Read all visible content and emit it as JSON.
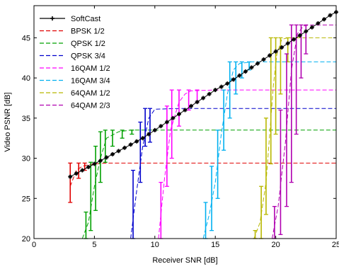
{
  "chart_data": {
    "type": "line",
    "xlabel": "Receiver SNR [dB]",
    "ylabel": "Video PSNR [dB]",
    "xlim": [
      0,
      25
    ],
    "ylim": [
      20,
      49
    ],
    "xticks": [
      0,
      5,
      10,
      15,
      20,
      25
    ],
    "yticks": [
      20,
      25,
      30,
      35,
      40,
      45
    ],
    "grid": false,
    "legend_position": "top-left",
    "series": [
      {
        "name": "SoftCast",
        "color": "#000000",
        "style": "solid-asterisk",
        "x": [
          3,
          3.5,
          4,
          4.5,
          5,
          5.5,
          6,
          6.5,
          7,
          7.5,
          8,
          8.5,
          9,
          9.5,
          10,
          10.5,
          11,
          11.5,
          12,
          12.5,
          13,
          13.5,
          14,
          14.5,
          15,
          15.5,
          16,
          16.5,
          17,
          17.5,
          18,
          18.5,
          19,
          19.5,
          20,
          20.5,
          21,
          21.5,
          22,
          22.5,
          23,
          23.5,
          24,
          24.5,
          25
        ],
        "y": [
          27.7,
          28.1,
          28.5,
          28.9,
          29.3,
          29.7,
          30.1,
          30.5,
          30.9,
          31.3,
          31.7,
          32.1,
          32.5,
          33.0,
          33.5,
          34.0,
          34.5,
          35.0,
          35.5,
          36.0,
          36.5,
          37.0,
          37.5,
          38.0,
          38.5,
          38.9,
          39.3,
          39.8,
          40.3,
          40.8,
          41.3,
          41.8,
          42.3,
          42.8,
          43.3,
          43.8,
          44.3,
          44.8,
          45.3,
          45.8,
          46.3,
          46.8,
          47.3,
          47.8,
          48.2
        ]
      },
      {
        "name": "BPSK 1/2",
        "color": "#e00000",
        "x": [
          3,
          3.5,
          4,
          4.5,
          5,
          6,
          8,
          10,
          15,
          20,
          25
        ],
        "y": [
          26.5,
          28.5,
          29.0,
          29.2,
          29.3,
          29.4,
          29.4,
          29.4,
          29.4,
          29.4,
          29.4
        ],
        "errors": [
          {
            "x": 3,
            "lo": 24.5,
            "hi": 29.4
          },
          {
            "x": 3.7,
            "lo": 27.5,
            "hi": 29.4
          },
          {
            "x": 4.2,
            "lo": 28.5,
            "hi": 29.4
          }
        ]
      },
      {
        "name": "QPSK 1/2",
        "color": "#00a000",
        "x": [
          4,
          4.5,
          5,
          5.5,
          6,
          7,
          8,
          10,
          15,
          20,
          25
        ],
        "y": [
          20,
          22,
          26.5,
          30,
          32.5,
          33.3,
          33.5,
          33.5,
          33.5,
          33.5,
          33.5
        ],
        "errors": [
          {
            "x": 4.3,
            "lo": 20,
            "hi": 23.3
          },
          {
            "x": 4.7,
            "lo": 21,
            "hi": 29.5
          },
          {
            "x": 5.1,
            "lo": 23.5,
            "hi": 31.5
          },
          {
            "x": 5.5,
            "lo": 27,
            "hi": 33.3
          },
          {
            "x": 5.9,
            "lo": 29.5,
            "hi": 33.5
          },
          {
            "x": 6.5,
            "lo": 31.5,
            "hi": 33.5
          },
          {
            "x": 7.3,
            "lo": 32.5,
            "hi": 33.5
          },
          {
            "x": 8.1,
            "lo": 33,
            "hi": 33.5
          }
        ]
      },
      {
        "name": "QPSK 3/4",
        "color": "#0000cc",
        "x": [
          8,
          8.5,
          9,
          9.5,
          10,
          12,
          15,
          20,
          25
        ],
        "y": [
          20,
          26,
          31.5,
          35,
          36.1,
          36.2,
          36.2,
          36.2,
          36.2
        ],
        "errors": [
          {
            "x": 8.2,
            "lo": 20,
            "hi": 28.5
          },
          {
            "x": 8.8,
            "lo": 27,
            "hi": 34.5
          },
          {
            "x": 9.2,
            "lo": 31.5,
            "hi": 36.2
          },
          {
            "x": 9.6,
            "lo": 32,
            "hi": 36.2
          }
        ]
      },
      {
        "name": "16QAM 1/2",
        "color": "#ff00ff",
        "x": [
          10.3,
          10.8,
          11.3,
          12,
          12.5,
          13,
          15,
          20,
          25
        ],
        "y": [
          20,
          27.5,
          33.5,
          37,
          38,
          38.4,
          38.5,
          38.5,
          38.5
        ],
        "errors": [
          {
            "x": 10.5,
            "lo": 20,
            "hi": 27
          },
          {
            "x": 11.0,
            "lo": 26.5,
            "hi": 36.5
          },
          {
            "x": 11.4,
            "lo": 30,
            "hi": 38.5
          },
          {
            "x": 12.0,
            "lo": 34,
            "hi": 38.5
          },
          {
            "x": 12.8,
            "lo": 36,
            "hi": 38.5
          },
          {
            "x": 13.5,
            "lo": 37,
            "hi": 38.5
          }
        ]
      },
      {
        "name": "16QAM 3/4",
        "color": "#00b0f0",
        "x": [
          14,
          14.5,
          15,
          15.5,
          16,
          16.5,
          17,
          18,
          20,
          25
        ],
        "y": [
          20,
          23,
          27,
          33,
          38,
          41,
          41.8,
          42.0,
          42.0,
          42.0
        ],
        "errors": [
          {
            "x": 14.2,
            "lo": 20,
            "hi": 24.5
          },
          {
            "x": 14.7,
            "lo": 21,
            "hi": 29
          },
          {
            "x": 15.2,
            "lo": 25,
            "hi": 33.5
          },
          {
            "x": 15.7,
            "lo": 31,
            "hi": 38.5
          },
          {
            "x": 16.2,
            "lo": 35,
            "hi": 42
          },
          {
            "x": 16.7,
            "lo": 38,
            "hi": 42
          },
          {
            "x": 17.2,
            "lo": 40,
            "hi": 42
          },
          {
            "x": 17.8,
            "lo": 41,
            "hi": 42
          }
        ]
      },
      {
        "name": "64QAM 1/2",
        "color": "#b8b800",
        "x": [
          18.2,
          18.7,
          19.2,
          19.5,
          19.8,
          20.1,
          20.5,
          21,
          22,
          25
        ],
        "y": [
          20,
          22,
          27,
          33,
          39,
          43,
          44.8,
          45.0,
          45.0,
          45.0
        ],
        "errors": [
          {
            "x": 18.3,
            "lo": 20,
            "hi": 21
          },
          {
            "x": 18.8,
            "lo": 20,
            "hi": 26.5
          },
          {
            "x": 19.2,
            "lo": 23,
            "hi": 35
          },
          {
            "x": 19.6,
            "lo": 29.3,
            "hi": 45
          },
          {
            "x": 20.0,
            "lo": 33,
            "hi": 45
          },
          {
            "x": 20.4,
            "lo": 38,
            "hi": 45
          },
          {
            "x": 21.0,
            "lo": 42,
            "hi": 45
          }
        ]
      },
      {
        "name": "64QAM 2/3",
        "color": "#b000b0",
        "x": [
          19.7,
          20.2,
          20.8,
          21.3,
          21.8,
          22.3,
          23,
          25
        ],
        "y": [
          20,
          24,
          32,
          41,
          45.5,
          46.5,
          46.6,
          46.6
        ],
        "errors": [
          {
            "x": 19.9,
            "lo": 20,
            "hi": 24
          },
          {
            "x": 20.4,
            "lo": 20.5,
            "hi": 36
          },
          {
            "x": 20.9,
            "lo": 24,
            "hi": 43
          },
          {
            "x": 21.3,
            "lo": 27,
            "hi": 46.6
          },
          {
            "x": 21.7,
            "lo": 33,
            "hi": 46.6
          },
          {
            "x": 22.1,
            "lo": 40,
            "hi": 46.6
          },
          {
            "x": 22.5,
            "lo": 43,
            "hi": 46.6
          }
        ]
      }
    ]
  }
}
